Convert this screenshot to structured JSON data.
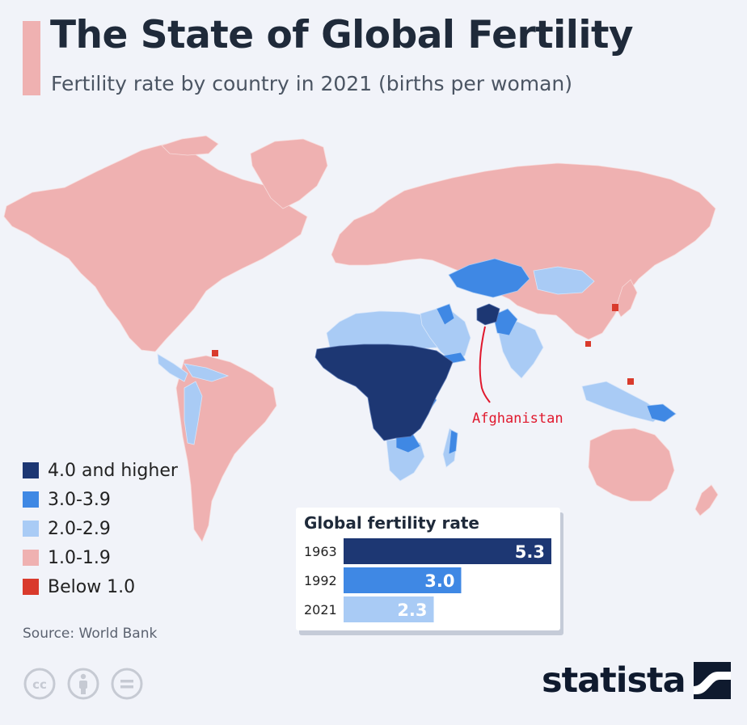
{
  "title": "The State of Global Fertility",
  "subtitle": "Fertility rate by country in 2021 (births per woman)",
  "colors": {
    "very_high": "#1d3773",
    "high": "#3f88e4",
    "medium": "#a9cbf5",
    "low": "#efb1b1",
    "very_low": "#d93a2c",
    "background": "#f1f3f9",
    "annotation": "#e0182d"
  },
  "legend": [
    {
      "label": "4.0 and higher",
      "color": "#1d3773"
    },
    {
      "label": "3.0-3.9",
      "color": "#3f88e4"
    },
    {
      "label": "2.0-2.9",
      "color": "#a9cbf5"
    },
    {
      "label": "1.0-1.9",
      "color": "#efb1b1"
    },
    {
      "label": "Below 1.0",
      "color": "#d93a2c"
    }
  ],
  "annotation": {
    "label": "Afghanistan"
  },
  "source": "Source: World Bank",
  "brand": "statista",
  "license_icons": [
    "cc-icon",
    "attribution-icon",
    "no-derivatives-icon"
  ],
  "chart_data": {
    "type": "bar",
    "title": "Global fertility rate",
    "orientation": "horizontal",
    "categories": [
      "1963",
      "1992",
      "2021"
    ],
    "values": [
      5.3,
      3.0,
      2.3
    ],
    "colors": [
      "#1d3773",
      "#3f88e4",
      "#a9cbf5"
    ],
    "xlim": [
      0,
      5.3
    ]
  }
}
